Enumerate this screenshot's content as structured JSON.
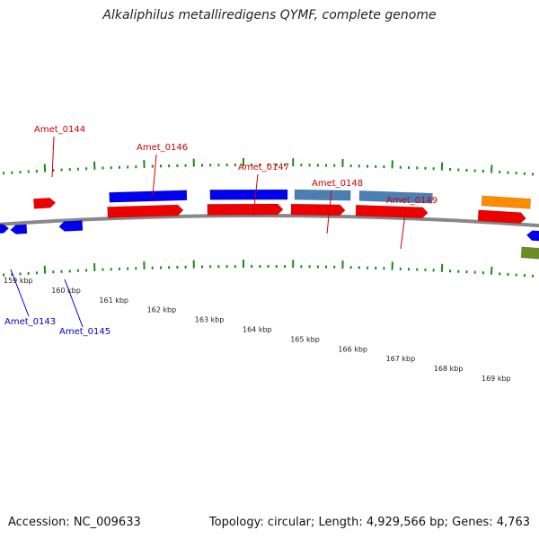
{
  "title": "Alkaliphilus metalliredigens QYMF, complete genome",
  "footer": {
    "accession": "Accession: NC_009633",
    "summary": "Topology: circular; Length: 4,929,566 bp; Genes: 4,763"
  },
  "colors": {
    "backbone": "#888888",
    "tick": "#1a8a1a",
    "label_top": "#cc0000",
    "label_bottom": "#0000cc",
    "blue": "#0000ee",
    "red": "#ee0000",
    "steel": "#4a7fb5",
    "orange": "#ff8c00",
    "olive": "#6b8e23"
  },
  "scale_labels": [
    "159 kbp",
    "160 kbp",
    "161 kbp",
    "162 kbp",
    "163 kbp",
    "164 kbp",
    "165 kbp",
    "166 kbp",
    "167 kbp",
    "168 kbp",
    "169 kbp"
  ],
  "gene_labels": {
    "top": [
      "Amet_0144",
      "Amet_0146",
      "Amet_0147",
      "Amet_0148",
      "Amet_0149"
    ],
    "bottom": [
      "Amet_0143",
      "Amet_0145"
    ]
  }
}
